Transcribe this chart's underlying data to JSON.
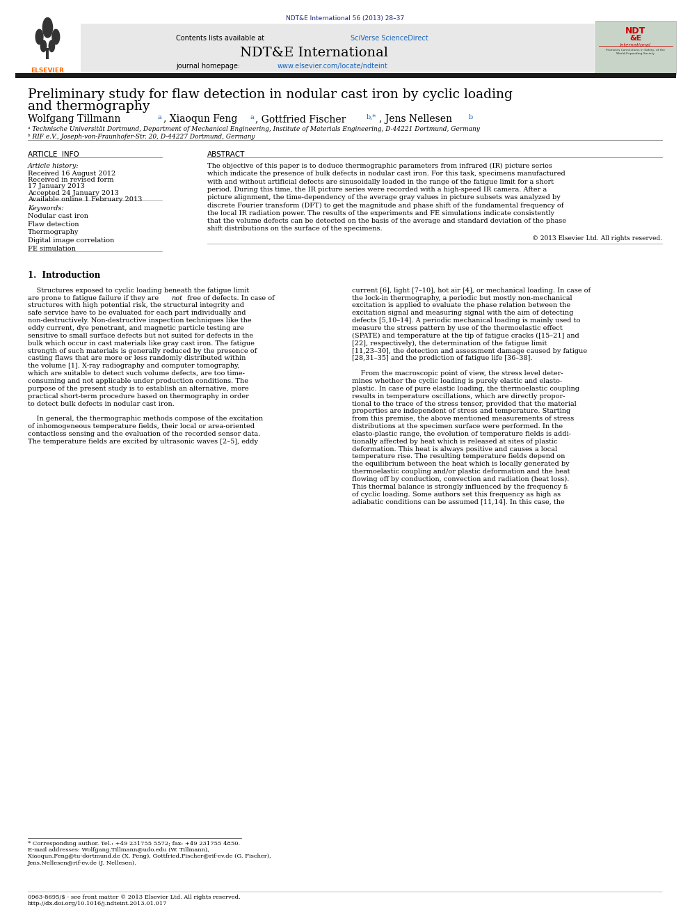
{
  "page_width": 9.92,
  "page_height": 13.23,
  "bg_color": "#ffffff",
  "journal_ref": "NDT&E International 56 (2013) 28–37",
  "journal_ref_color": "#1a237e",
  "header_bg": "#e8e8e8",
  "sciverse_color": "#1565c0",
  "journal_url_color": "#1565c0",
  "paper_title_line1": "Preliminary study for flaw detection in nodular cast iron by cyclic loading",
  "paper_title_line2": "and thermography",
  "affil_a": "ᵃ Technische Universität Dortmund, Department of Mechanical Engineering, Institute of Materials Engineering, D-44221 Dortmund, Germany",
  "affil_b": "ᵇ RIF e.V., Joseph-von-Fraunhofer-Str. 20, D-44227 Dortmund, Germany",
  "article_info_header": "ARTICLE  INFO",
  "abstract_header": "ABSTRACT",
  "article_history_label": "Article history:",
  "received": "Received 16 August 2012",
  "received_revised": "Received in revised form",
  "revised_date": "17 January 2013",
  "accepted": "Accepted 24 January 2013",
  "available": "Available online 1 February 2013",
  "keywords_label": "Keywords:",
  "keywords": [
    "Nodular cast iron",
    "Flaw detection",
    "Thermography",
    "Digital image correlation",
    "FE simulation"
  ],
  "copyright": "© 2013 Elsevier Ltd. All rights reserved.",
  "section1_title": "1.  Introduction",
  "footer_note": "* Corresponding author. Tel.: +49 231755 5572; fax: +49 231755 4850.",
  "footer_email1": "E-mail addresses: Wolfgang.Tillmann@udo.edu (W. Tillmann),",
  "footer_email2": "Xiaoqun.Feng@tu-dortmund.de (X. Feng), Gottfried.Fischer@rif-ev.de (G. Fischer),",
  "footer_email3": "Jens.Nellesen@rif-ev.de (J. Nellesen).",
  "footer_issn": "0963-8695/$ - see front matter © 2013 Elsevier Ltd. All rights reserved.",
  "footer_doi": "http://dx.doi.org/10.1016/j.ndteint.2013.01.017",
  "link_color": "#1565c0",
  "thick_bar_color": "#1a1a1a"
}
